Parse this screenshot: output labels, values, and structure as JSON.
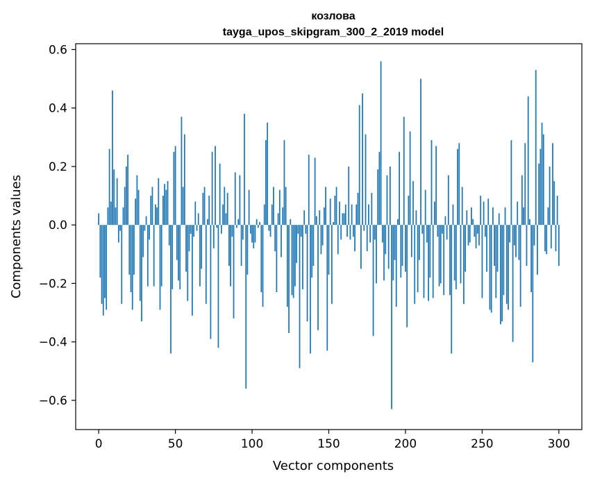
{
  "chart_data": {
    "type": "bar",
    "title": "козлова",
    "subtitle": "tayga_upos_skipgram_300_2_2019 model",
    "xlabel": "Vector components",
    "ylabel": "Components values",
    "xlim": [
      -15,
      315
    ],
    "ylim": [
      -0.7,
      0.62
    ],
    "xticks": [
      0,
      50,
      100,
      150,
      200,
      250,
      300
    ],
    "xtick_labels": [
      "0",
      "50",
      "100",
      "150",
      "200",
      "250",
      "300"
    ],
    "yticks": [
      -0.6,
      -0.4,
      -0.2,
      0.0,
      0.2,
      0.4,
      0.6
    ],
    "ytick_labels": [
      "−0.6",
      "−0.4",
      "−0.2",
      "0.0",
      "0.2",
      "0.4",
      "0.6"
    ],
    "bar_color": "#1f77b4",
    "grid": false,
    "x_start": 0,
    "values": [
      0.04,
      -0.18,
      -0.27,
      -0.31,
      -0.25,
      -0.29,
      0.06,
      0.26,
      0.08,
      0.46,
      0.19,
      0.06,
      0.16,
      -0.06,
      -0.02,
      -0.27,
      0.06,
      0.13,
      0.2,
      0.24,
      -0.17,
      -0.23,
      -0.29,
      -0.17,
      0.09,
      0.17,
      0.12,
      -0.26,
      -0.33,
      -0.11,
      -0.02,
      0.03,
      -0.21,
      -0.05,
      0.1,
      0.13,
      -0.21,
      0.07,
      0.06,
      0.16,
      -0.29,
      -0.21,
      0.1,
      0.14,
      0.12,
      0.15,
      -0.07,
      -0.44,
      -0.22,
      0.25,
      0.27,
      -0.12,
      -0.19,
      -0.22,
      0.37,
      0.13,
      0.31,
      -0.16,
      -0.26,
      -0.09,
      -0.03,
      -0.31,
      -0.04,
      0.08,
      -0.02,
      0.04,
      -0.21,
      -0.15,
      0.11,
      0.13,
      -0.27,
      0.02,
      0.1,
      -0.39,
      0.25,
      -0.08,
      0.27,
      -0.01,
      -0.42,
      0.21,
      -0.03,
      0.07,
      0.13,
      0.04,
      0.11,
      -0.14,
      -0.21,
      -0.04,
      -0.32,
      0.18,
      -0.01,
      0.02,
      0.17,
      -0.14,
      -0.05,
      0.38,
      -0.56,
      -0.17,
      0.12,
      -0.03,
      -0.06,
      -0.08,
      -0.06,
      0.02,
      -0.01,
      0.01,
      -0.23,
      -0.28,
      0.07,
      0.29,
      0.35,
      -0.02,
      -0.04,
      0.07,
      0.13,
      -0.09,
      -0.23,
      0.04,
      0.12,
      -0.11,
      0.06,
      0.29,
      0.13,
      -0.28,
      -0.37,
      0.02,
      -0.24,
      -0.25,
      -0.21,
      -0.13,
      -0.03,
      -0.49,
      -0.04,
      -0.22,
      0.05,
      -0.03,
      -0.33,
      0.24,
      -0.44,
      -0.18,
      -0.14,
      0.23,
      0.03,
      -0.36,
      0.05,
      -0.1,
      -0.07,
      0.06,
      0.13,
      -0.43,
      -0.17,
      0.09,
      -0.27,
      0.01,
      0.1,
      0.13,
      -0.1,
      0.08,
      -0.05,
      0.04,
      0.04,
      0.07,
      -0.04,
      0.2,
      -0.05,
      0.07,
      -0.04,
      -0.09,
      0.07,
      0.11,
      0.41,
      -0.15,
      0.45,
      -0.02,
      0.31,
      -0.09,
      0.07,
      -0.06,
      0.11,
      -0.38,
      -0.05,
      -0.2,
      0.19,
      0.25,
      0.56,
      -0.06,
      -0.19,
      -0.1,
      0.17,
      -0.15,
      0.2,
      -0.63,
      -0.19,
      -0.12,
      -0.28,
      0.02,
      0.25,
      -0.18,
      -0.14,
      0.37,
      -0.16,
      -0.35,
      0.1,
      0.32,
      -0.11,
      0.15,
      -0.27,
      0.05,
      -0.23,
      -0.12,
      0.5,
      -0.03,
      -0.25,
      0.12,
      -0.06,
      -0.26,
      -0.18,
      0.29,
      -0.25,
      0.08,
      0.27,
      -0.04,
      -0.21,
      -0.2,
      -0.03,
      -0.24,
      0.03,
      -0.05,
      0.17,
      -0.24,
      -0.44,
      0.07,
      -0.19,
      -0.22,
      0.26,
      0.28,
      -0.2,
      0.13,
      -0.27,
      -0.16,
      0.05,
      -0.07,
      -0.06,
      0.06,
      0.02,
      -0.04,
      -0.08,
      -0.03,
      -0.07,
      0.1,
      -0.25,
      0.08,
      -0.04,
      -0.16,
      0.09,
      -0.29,
      -0.3,
      0.06,
      -0.14,
      -0.25,
      -0.16,
      0.04,
      -0.34,
      -0.33,
      -0.24,
      0.06,
      -0.27,
      -0.29,
      -0.06,
      0.29,
      -0.4,
      -0.07,
      -0.11,
      0.08,
      -0.12,
      -0.28,
      0.17,
      0.06,
      0.28,
      -0.14,
      0.44,
      0.02,
      -0.23,
      -0.47,
      -0.07,
      0.53,
      -0.17,
      0.21,
      0.26,
      0.35,
      0.31,
      -0.09,
      -0.1,
      0.06,
      0.2,
      -0.08,
      0.28,
      0.15,
      -0.09,
      0.1,
      -0.14
    ]
  }
}
